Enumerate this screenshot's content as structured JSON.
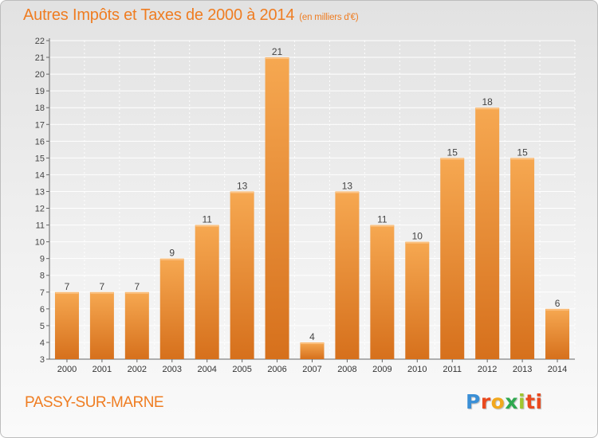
{
  "header": {
    "title": "Autres Impôts et Taxes de 2000 à 2014",
    "unit": "(en milliers d'€)"
  },
  "footer": {
    "city": "PASSY-SUR-MARNE",
    "logo_letters": [
      "P",
      "r",
      "o",
      "x",
      "i",
      "ti"
    ]
  },
  "colors": {
    "title": "#ef7d22",
    "bar_light": "#f5a44f",
    "bar_dark": "#d8701b"
  },
  "chart_data": {
    "type": "bar",
    "title": "Autres Impôts et Taxes de 2000 à 2014",
    "subtitle": "(en milliers d'€)",
    "categories": [
      "2000",
      "2001",
      "2002",
      "2003",
      "2004",
      "2005",
      "2006",
      "2007",
      "2008",
      "2009",
      "2010",
      "2011",
      "2012",
      "2013",
      "2014"
    ],
    "values": [
      7,
      7,
      7,
      9,
      11,
      13,
      21,
      4,
      13,
      11,
      10,
      15,
      18,
      15,
      6
    ],
    "ylim": [
      3,
      22
    ],
    "yticks": [
      3,
      4,
      5,
      6,
      7,
      8,
      9,
      10,
      11,
      12,
      13,
      14,
      15,
      16,
      17,
      18,
      19,
      20,
      21,
      22
    ],
    "grid": true,
    "data_labels": true
  }
}
